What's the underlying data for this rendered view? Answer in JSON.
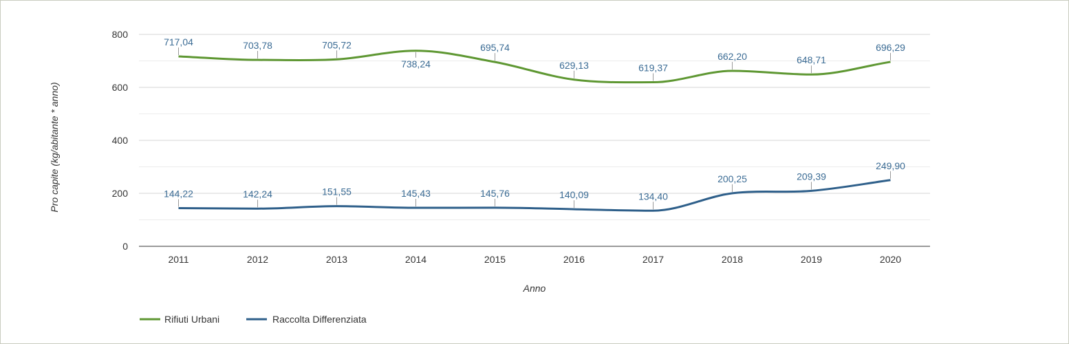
{
  "chart_data": {
    "type": "line",
    "title": "",
    "xlabel": "Anno",
    "ylabel": "Pro capite (kg/abitante * anno)",
    "categories": [
      "2011",
      "2012",
      "2013",
      "2014",
      "2015",
      "2016",
      "2017",
      "2018",
      "2019",
      "2020"
    ],
    "ylim": [
      0,
      800
    ],
    "yticks": [
      "0",
      "200",
      "400",
      "600",
      "800"
    ],
    "grid": "horizontal",
    "legend_position": "bottom-left",
    "series": [
      {
        "name": "Rifiuti Urbani",
        "color": "#5e9732",
        "values": [
          717.04,
          703.78,
          705.72,
          738.24,
          695.74,
          629.13,
          619.37,
          662.2,
          648.71,
          696.29
        ],
        "labels": [
          "717,04",
          "703,78",
          "705,72",
          "738,24",
          "695,74",
          "629,13",
          "619,37",
          "662,20",
          "648,71",
          "696,29"
        ],
        "label_side": [
          "above",
          "above",
          "above",
          "below",
          "above",
          "above",
          "above",
          "above",
          "above",
          "above"
        ]
      },
      {
        "name": "Raccolta Differenziata",
        "color": "#2e5f8a",
        "values": [
          144.22,
          142.24,
          151.55,
          145.43,
          145.76,
          140.09,
          134.4,
          200.25,
          209.39,
          249.9
        ],
        "labels": [
          "144,22",
          "142,24",
          "151,55",
          "145,43",
          "145,76",
          "140,09",
          "134,40",
          "200,25",
          "209,39",
          "249,90"
        ],
        "label_side": [
          "above",
          "above",
          "above",
          "above",
          "above",
          "above",
          "above",
          "above",
          "above",
          "above"
        ]
      }
    ]
  }
}
